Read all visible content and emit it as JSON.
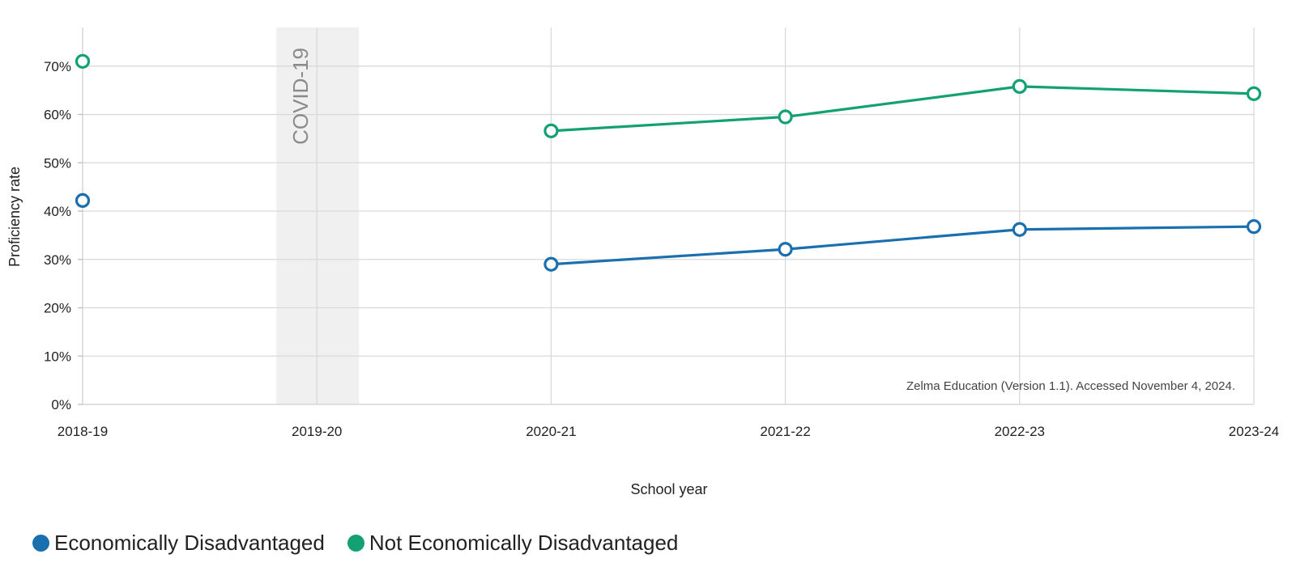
{
  "chart_data": {
    "type": "line",
    "categories": [
      "2018-19",
      "2019-20",
      "2020-21",
      "2021-22",
      "2022-23",
      "2023-24"
    ],
    "series": [
      {
        "name": "Economically Disadvantaged",
        "color": "#1a6fae",
        "values": [
          42.2,
          null,
          29.0,
          32.1,
          36.2,
          36.8
        ]
      },
      {
        "name": "Not Economically Disadvantaged",
        "color": "#13a073",
        "values": [
          71.0,
          null,
          56.6,
          59.5,
          65.8,
          64.3
        ]
      }
    ],
    "xlabel": "School year",
    "ylabel": "Proficiency rate",
    "ylim": [
      0,
      78
    ],
    "yticks": [
      0,
      10,
      20,
      30,
      40,
      50,
      60,
      70
    ],
    "ytick_labels": [
      "0%",
      "10%",
      "20%",
      "30%",
      "40%",
      "50%",
      "60%",
      "70%"
    ],
    "grid": true,
    "annotations": {
      "covid_label": "COVID-19",
      "covid_category": "2019-20",
      "source": "Zelma Education (Version 1.1). Accessed November 4, 2024."
    },
    "legend_position": "bottom-left"
  }
}
